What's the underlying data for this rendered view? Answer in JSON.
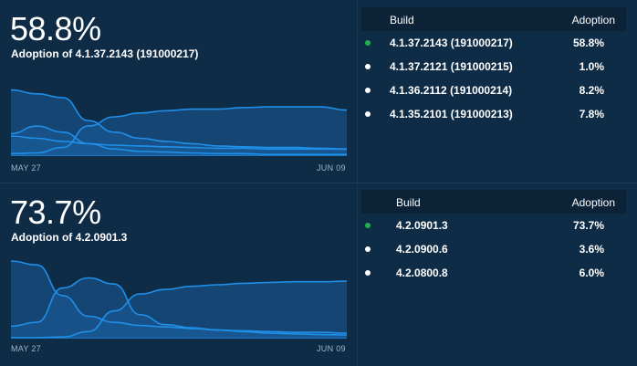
{
  "panels": [
    {
      "big_value": "58.8%",
      "subtitle": "Adoption of 4.1.37.2143 (191000217)",
      "x_start_label": "MAY 27",
      "x_end_label": "JUN 09",
      "table": {
        "headers": {
          "build": "Build",
          "adoption": "Adoption"
        },
        "rows": [
          {
            "build": "4.1.37.2143 (191000217)",
            "adoption": "58.8%",
            "dot_color": "#1fb14a"
          },
          {
            "build": "4.1.37.2121 (191000215)",
            "adoption": "1.0%",
            "dot_color": "#ffffff"
          },
          {
            "build": "4.1.36.2112 (191000214)",
            "adoption": "8.2%",
            "dot_color": "#ffffff"
          },
          {
            "build": "4.1.35.2101 (191000213)",
            "adoption": "7.8%",
            "dot_color": "#ffffff"
          }
        ]
      }
    },
    {
      "big_value": "73.7%",
      "subtitle": "Adoption of 4.2.0901.3",
      "x_start_label": "MAY 27",
      "x_end_label": "JUN 09",
      "table": {
        "headers": {
          "build": "Build",
          "adoption": "Adoption"
        },
        "rows": [
          {
            "build": "4.2.0901.3",
            "adoption": "73.7%",
            "dot_color": "#1fb14a"
          },
          {
            "build": "4.2.0900.6",
            "adoption": "3.6%",
            "dot_color": "#ffffff"
          },
          {
            "build": "4.2.0800.8",
            "adoption": "6.0%",
            "dot_color": "#ffffff"
          }
        ]
      }
    }
  ],
  "colors": {
    "background": "#0f2c47",
    "line": "#1f8fe8",
    "fill": "#1a5b98",
    "latest_dot": "#1fb14a"
  },
  "chart_data": [
    {
      "type": "area",
      "x": [
        "May 27",
        "May 28",
        "May 29",
        "May 30",
        "May 31",
        "Jun 01",
        "Jun 02",
        "Jun 03",
        "Jun 04",
        "Jun 05",
        "Jun 06",
        "Jun 07",
        "Jun 08",
        "Jun 09"
      ],
      "ylim": [
        0,
        100
      ],
      "series": [
        {
          "values": [
            2,
            3,
            10,
            38,
            50,
            55,
            58,
            60,
            60,
            62,
            63,
            63,
            63,
            58.8
          ]
        },
        {
          "values": [
            85,
            80,
            75,
            45,
            30,
            22,
            18,
            15,
            12,
            11,
            10,
            10,
            9,
            8.2
          ]
        },
        {
          "values": [
            25,
            22,
            18,
            15,
            13,
            12,
            11,
            10,
            9,
            9,
            8,
            8,
            8,
            7.8
          ]
        },
        {
          "values": [
            28,
            38,
            30,
            15,
            8,
            5,
            4,
            3,
            2,
            2,
            1,
            1,
            1,
            1.0
          ]
        }
      ]
    },
    {
      "type": "area",
      "x": [
        "May 27",
        "May 28",
        "May 29",
        "May 30",
        "May 31",
        "Jun 01",
        "Jun 02",
        "Jun 03",
        "Jun 04",
        "Jun 05",
        "Jun 06",
        "Jun 07",
        "Jun 08",
        "Jun 09"
      ],
      "ylim": [
        0,
        100
      ],
      "series": [
        {
          "values": [
            0,
            0,
            1,
            8,
            35,
            57,
            63,
            67,
            69,
            71,
            72,
            73,
            73,
            73.7
          ]
        },
        {
          "values": [
            100,
            95,
            55,
            28,
            20,
            16,
            14,
            12,
            10,
            9,
            8,
            7,
            7,
            6.0
          ]
        },
        {
          "values": [
            15,
            20,
            65,
            78,
            70,
            30,
            17,
            13,
            10,
            8,
            6,
            5,
            4,
            3.6
          ]
        }
      ]
    }
  ]
}
